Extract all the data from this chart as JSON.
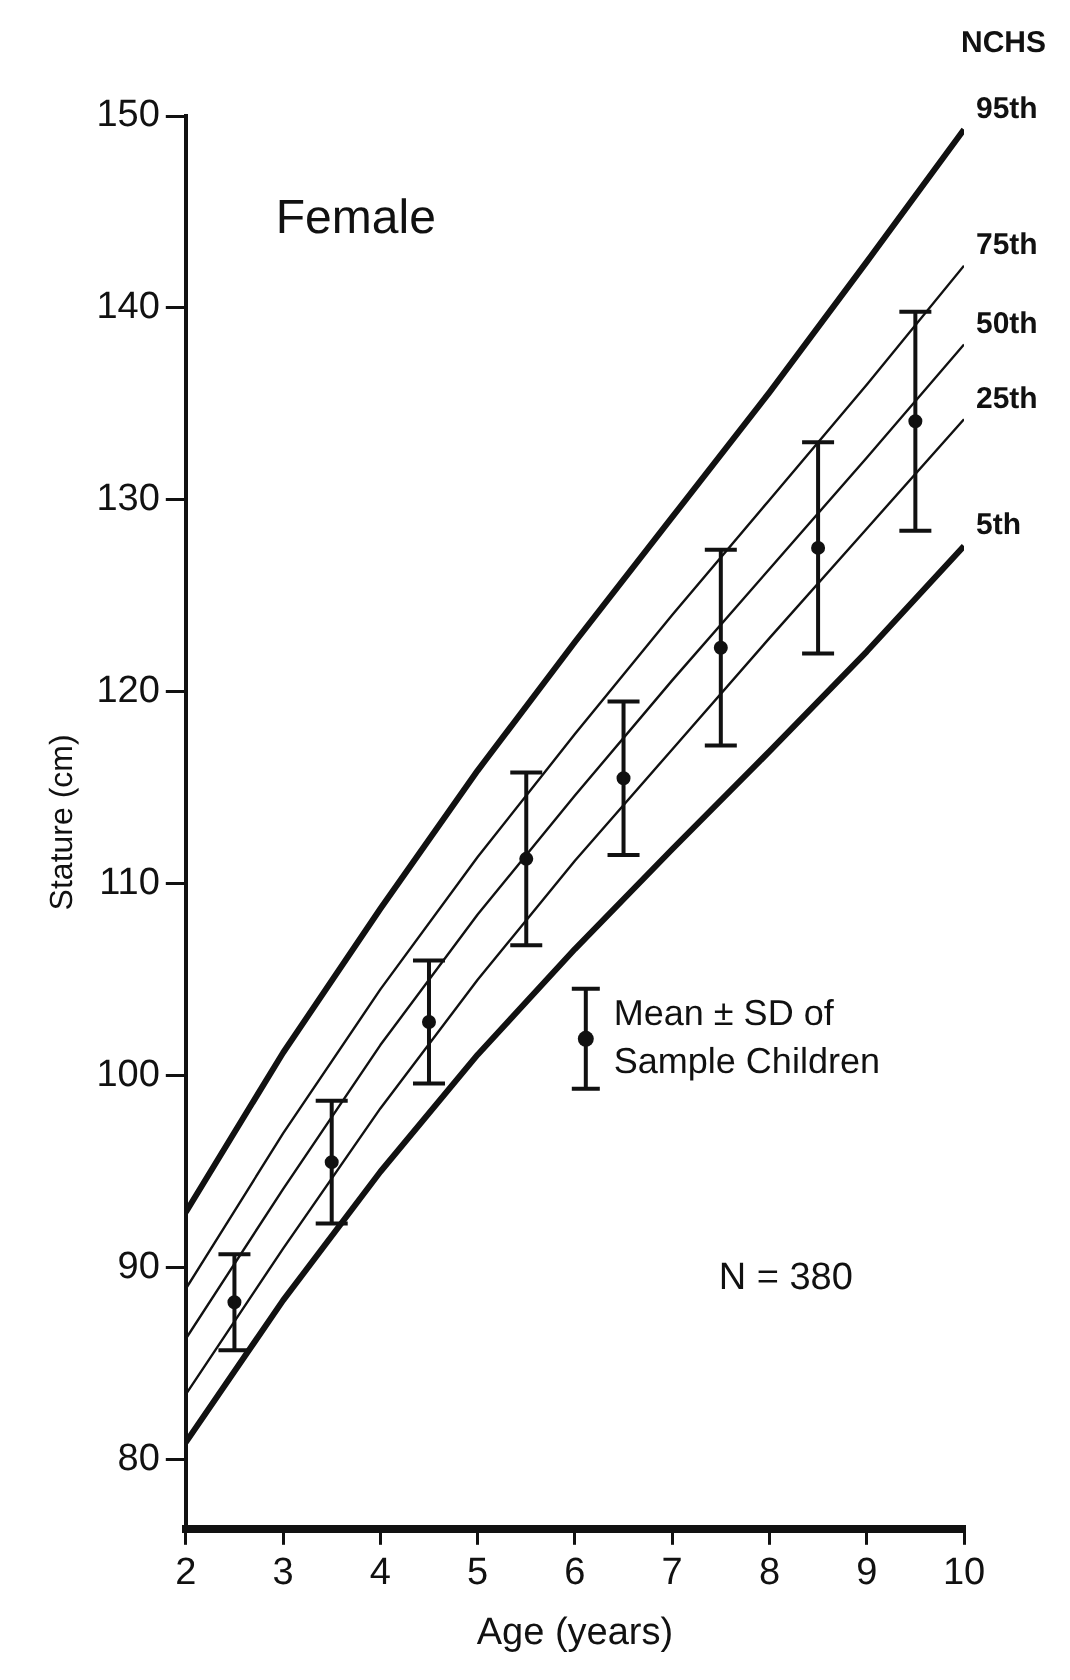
{
  "chart_data": {
    "type": "line",
    "xlabel": "Age (years)",
    "ylabel": "Stature (cm)",
    "xlim": [
      2,
      10
    ],
    "xticks": [
      2,
      3,
      4,
      5,
      6,
      7,
      8,
      9,
      10
    ],
    "ylim": [
      76.4,
      150
    ],
    "yticks": [
      80,
      90,
      100,
      110,
      120,
      130,
      140,
      150
    ],
    "grid": false,
    "legend": "right",
    "marker": "none",
    "line_style": "solid",
    "annotations": [
      "Female",
      "NCHS",
      "N = 380"
    ],
    "series": [
      {
        "name": "95th",
        "color": "#111111",
        "x": [
          2,
          3,
          4,
          5,
          6,
          7,
          8,
          9,
          10
        ],
        "values": [
          92.9,
          101.2,
          108.7,
          115.9,
          122.6,
          129.1,
          135.6,
          142.4,
          149.3
        ]
      },
      {
        "name": "75th",
        "color": "#111111",
        "x": [
          2,
          3,
          4,
          5,
          6,
          7,
          8,
          9,
          10
        ],
        "values": [
          88.9,
          97.0,
          104.5,
          111.4,
          117.8,
          124.0,
          130.0,
          136.0,
          142.2
        ]
      },
      {
        "name": "50th",
        "color": "#111111",
        "x": [
          2,
          3,
          4,
          5,
          6,
          7,
          8,
          9,
          10
        ],
        "values": [
          86.3,
          94.1,
          101.6,
          108.4,
          114.6,
          120.6,
          126.4,
          132.2,
          138.1
        ]
      },
      {
        "name": "25th",
        "color": "#111111",
        "x": [
          2,
          3,
          4,
          5,
          6,
          7,
          8,
          9,
          10
        ],
        "values": [
          83.4,
          91.0,
          98.3,
          105.0,
          111.2,
          117.0,
          122.8,
          128.5,
          134.2
        ]
      },
      {
        "name": "5th",
        "color": "#111111",
        "x": [
          2,
          3,
          4,
          5,
          6,
          7,
          8,
          9,
          10
        ],
        "values": [
          80.9,
          88.3,
          95.0,
          101.1,
          106.6,
          111.8,
          116.9,
          122.1,
          127.6
        ]
      },
      {
        "name": "Mean ± SD of Sample Children",
        "type": "scatter",
        "marker": "circle",
        "color": "#111111",
        "x": [
          2.5,
          3.5,
          4.5,
          5.5,
          6.5,
          7.5,
          8.5,
          9.5
        ],
        "values": [
          88.2,
          95.5,
          102.8,
          111.3,
          115.5,
          122.3,
          127.5,
          134.1
        ],
        "errors": [
          2.5,
          3.2,
          3.2,
          4.5,
          4.0,
          5.1,
          5.5,
          5.7
        ]
      }
    ]
  }
}
